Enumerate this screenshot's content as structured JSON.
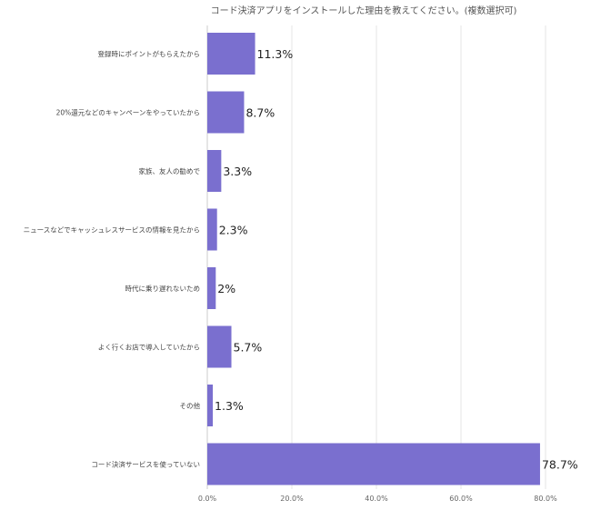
{
  "chart_data": {
    "type": "bar",
    "orientation": "horizontal",
    "title": "コード決済アプリをインストールした理由を教えてください。(複数選択可)",
    "categories": [
      "登録時にポイントがもらえたから",
      "20%還元などのキャンペーンをやっていたから",
      "家族、友人の勧めで",
      "ニュースなどでキャッシュレスサービスの情報を見たから",
      "時代に乗り遅れないため",
      "よく行くお店で導入していたから",
      "その他",
      "コード決済サービスを使っていない"
    ],
    "values": [
      11.3,
      8.7,
      3.3,
      2.3,
      2,
      5.7,
      1.3,
      78.7
    ],
    "value_labels": [
      "11.3%",
      "8.7%",
      "3.3%",
      "2.3%",
      "2%",
      "5.7%",
      "1.3%",
      "78.7%"
    ],
    "xlim": [
      0,
      80
    ],
    "xticks": [
      0,
      20,
      40,
      60,
      80
    ],
    "xtick_labels": [
      "0.0%",
      "20.0%",
      "40.0%",
      "60.0%",
      "80.0%"
    ],
    "grid": true,
    "bar_color": "#7a6fcf"
  }
}
